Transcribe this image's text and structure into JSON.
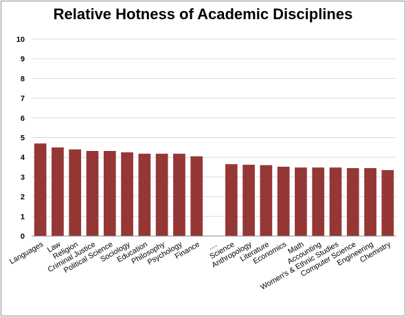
{
  "chart_data": {
    "type": "bar",
    "title": "Relative Hotness of Academic Disciplines",
    "xlabel": "",
    "ylabel": "",
    "ylim": [
      0,
      10
    ],
    "y_ticks": [
      "0",
      "1",
      "2",
      "3",
      "4",
      "5",
      "6",
      "7",
      "8",
      "9",
      "10"
    ],
    "grid": "horizontal",
    "legend": "none",
    "bar_color": "#953735",
    "categories": [
      "Languages",
      "Law",
      "Religion",
      "Criminal Justice",
      "Political Science",
      "Sociology",
      "Education",
      "Philosophy",
      "Psychology",
      "Finance",
      "....",
      "Science",
      "Anthropology",
      "Literature",
      "Economics",
      "Math",
      "Accounting",
      "Women's & Ethnic Studies",
      "Computer Science",
      "Engineering",
      "Chemistry"
    ],
    "values": [
      4.7,
      4.5,
      4.4,
      4.32,
      4.32,
      4.25,
      4.18,
      4.18,
      4.18,
      4.05,
      null,
      3.65,
      3.62,
      3.6,
      3.52,
      3.48,
      3.48,
      3.48,
      3.45,
      3.45,
      3.35
    ]
  }
}
